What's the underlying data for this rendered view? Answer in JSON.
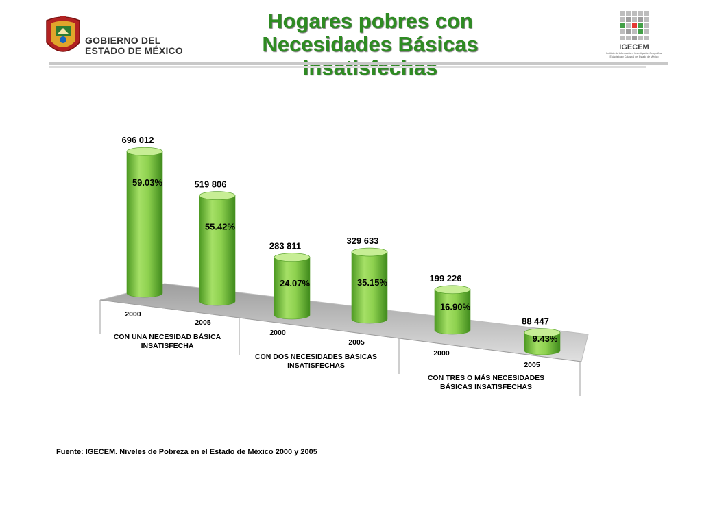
{
  "header": {
    "gov_line1": "GOBIERNO DEL",
    "gov_line2": "ESTADO DE MÉXICO",
    "title_lines": [
      "Hogares pobres con",
      "Necesidades Básicas",
      "Insatisfechas"
    ],
    "right_logo_name": "IGECEM",
    "right_logo_caption": [
      "Instituto de Información e Investigación Geográfica,",
      "Estadística y Catastral del Estado de México"
    ]
  },
  "chart_data": {
    "type": "bar",
    "title": "Hogares pobres con Necesidades Básicas Insatisfechas",
    "groups": [
      {
        "label_lines": [
          "CON UNA NECESIDAD BÁSICA",
          "INSATISFECHA"
        ]
      },
      {
        "label_lines": [
          "CON DOS NECESIDADES BÁSICAS",
          "INSATISFECHAS"
        ]
      },
      {
        "label_lines": [
          "CON TRES O MÁS NECESIDADES",
          "BÁSICAS INSATISFECHAS"
        ]
      }
    ],
    "bars": [
      {
        "group": 0,
        "year": "2000",
        "value": 696012,
        "value_label": "696 012",
        "percent_label": "59.03%"
      },
      {
        "group": 0,
        "year": "2005",
        "value": 519806,
        "value_label": "519 806",
        "percent_label": "55.42%"
      },
      {
        "group": 1,
        "year": "2000",
        "value": 283811,
        "value_label": "283 811",
        "percent_label": "24.07%"
      },
      {
        "group": 1,
        "year": "2005",
        "value": 329633,
        "value_label": "329 633",
        "percent_label": "35.15%"
      },
      {
        "group": 2,
        "year": "2000",
        "value": 199226,
        "value_label": "199 226",
        "percent_label": "16.90%"
      },
      {
        "group": 2,
        "year": "2005",
        "value": 88447,
        "value_label": "88 447",
        "percent_label": "9.43%"
      }
    ],
    "colors": {
      "bar": "#8ed14f",
      "bar_dark": "#4e9a23",
      "bar_light": "#c7ee95",
      "floor": "#d4d4d4"
    }
  },
  "source": "Fuente: IGECEM. Niveles de Pobreza en el Estado de México 2000 y 2005"
}
